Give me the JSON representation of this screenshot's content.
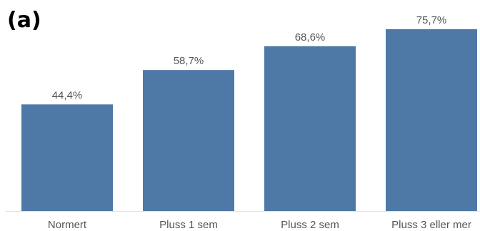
{
  "panel_label": "(a)",
  "colors": {
    "bar": "#4e79a7",
    "baseline": "#e3e3e3",
    "text": "#555555"
  },
  "chart_data": {
    "type": "bar",
    "categories": [
      "Normert",
      "Pluss 1 sem",
      "Pluss 2 sem",
      "Pluss 3 eller mer"
    ],
    "values": [
      44.4,
      58.7,
      68.6,
      75.7
    ],
    "value_labels": [
      "44,4%",
      "58,7%",
      "68,6%",
      "75,7%"
    ],
    "unit": "%",
    "title": "",
    "xlabel": "",
    "ylabel": "",
    "ylim": [
      0,
      100
    ],
    "grid": false,
    "legend": "none"
  }
}
